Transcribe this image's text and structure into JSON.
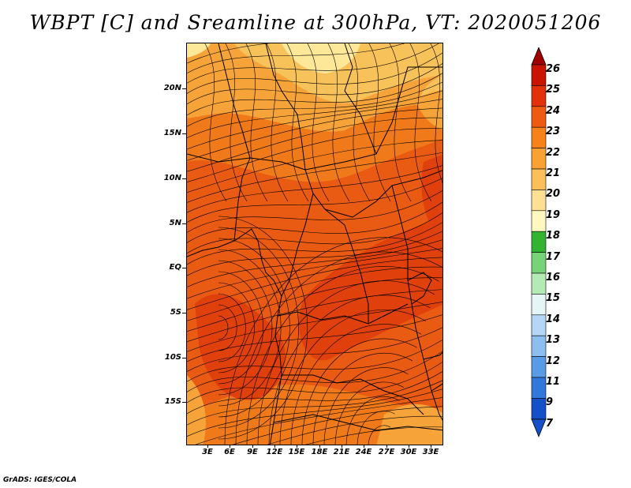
{
  "title": "WBPT [C] and Sreamline at 300hPa, VT: 2020051206",
  "credit": "GrADS: IGES/COLA",
  "map": {
    "lat_labels": [
      "20N",
      "15N",
      "10N",
      "5N",
      "EQ",
      "5S",
      "10S",
      "15S"
    ],
    "lon_labels": [
      "3E",
      "6E",
      "9E",
      "12E",
      "15E",
      "18E",
      "21E",
      "24E",
      "27E",
      "30E",
      "33E"
    ],
    "fill_colors": {
      "c19": "#fde89a",
      "c20": "#f8c25a",
      "c21": "#f6a33a",
      "c22": "#f07a1a",
      "c23": "#e95a12",
      "c24": "#e0400c"
    }
  },
  "colorbar": {
    "labels": [
      "26",
      "25",
      "24",
      "23",
      "22",
      "21",
      "20",
      "19",
      "18",
      "17",
      "16",
      "15",
      "14",
      "13",
      "12",
      "11",
      "9",
      "7"
    ],
    "colors": [
      "#a00000",
      "#c81400",
      "#e1300a",
      "#ee5a12",
      "#f7821a",
      "#f9a232",
      "#fbc05a",
      "#fde094",
      "#fff8c0",
      "#32b432",
      "#78d278",
      "#b4eab4",
      "#e6f5f5",
      "#b4d7f5",
      "#8cbef0",
      "#5a9be6",
      "#3278dc",
      "#1450c8"
    ]
  }
}
